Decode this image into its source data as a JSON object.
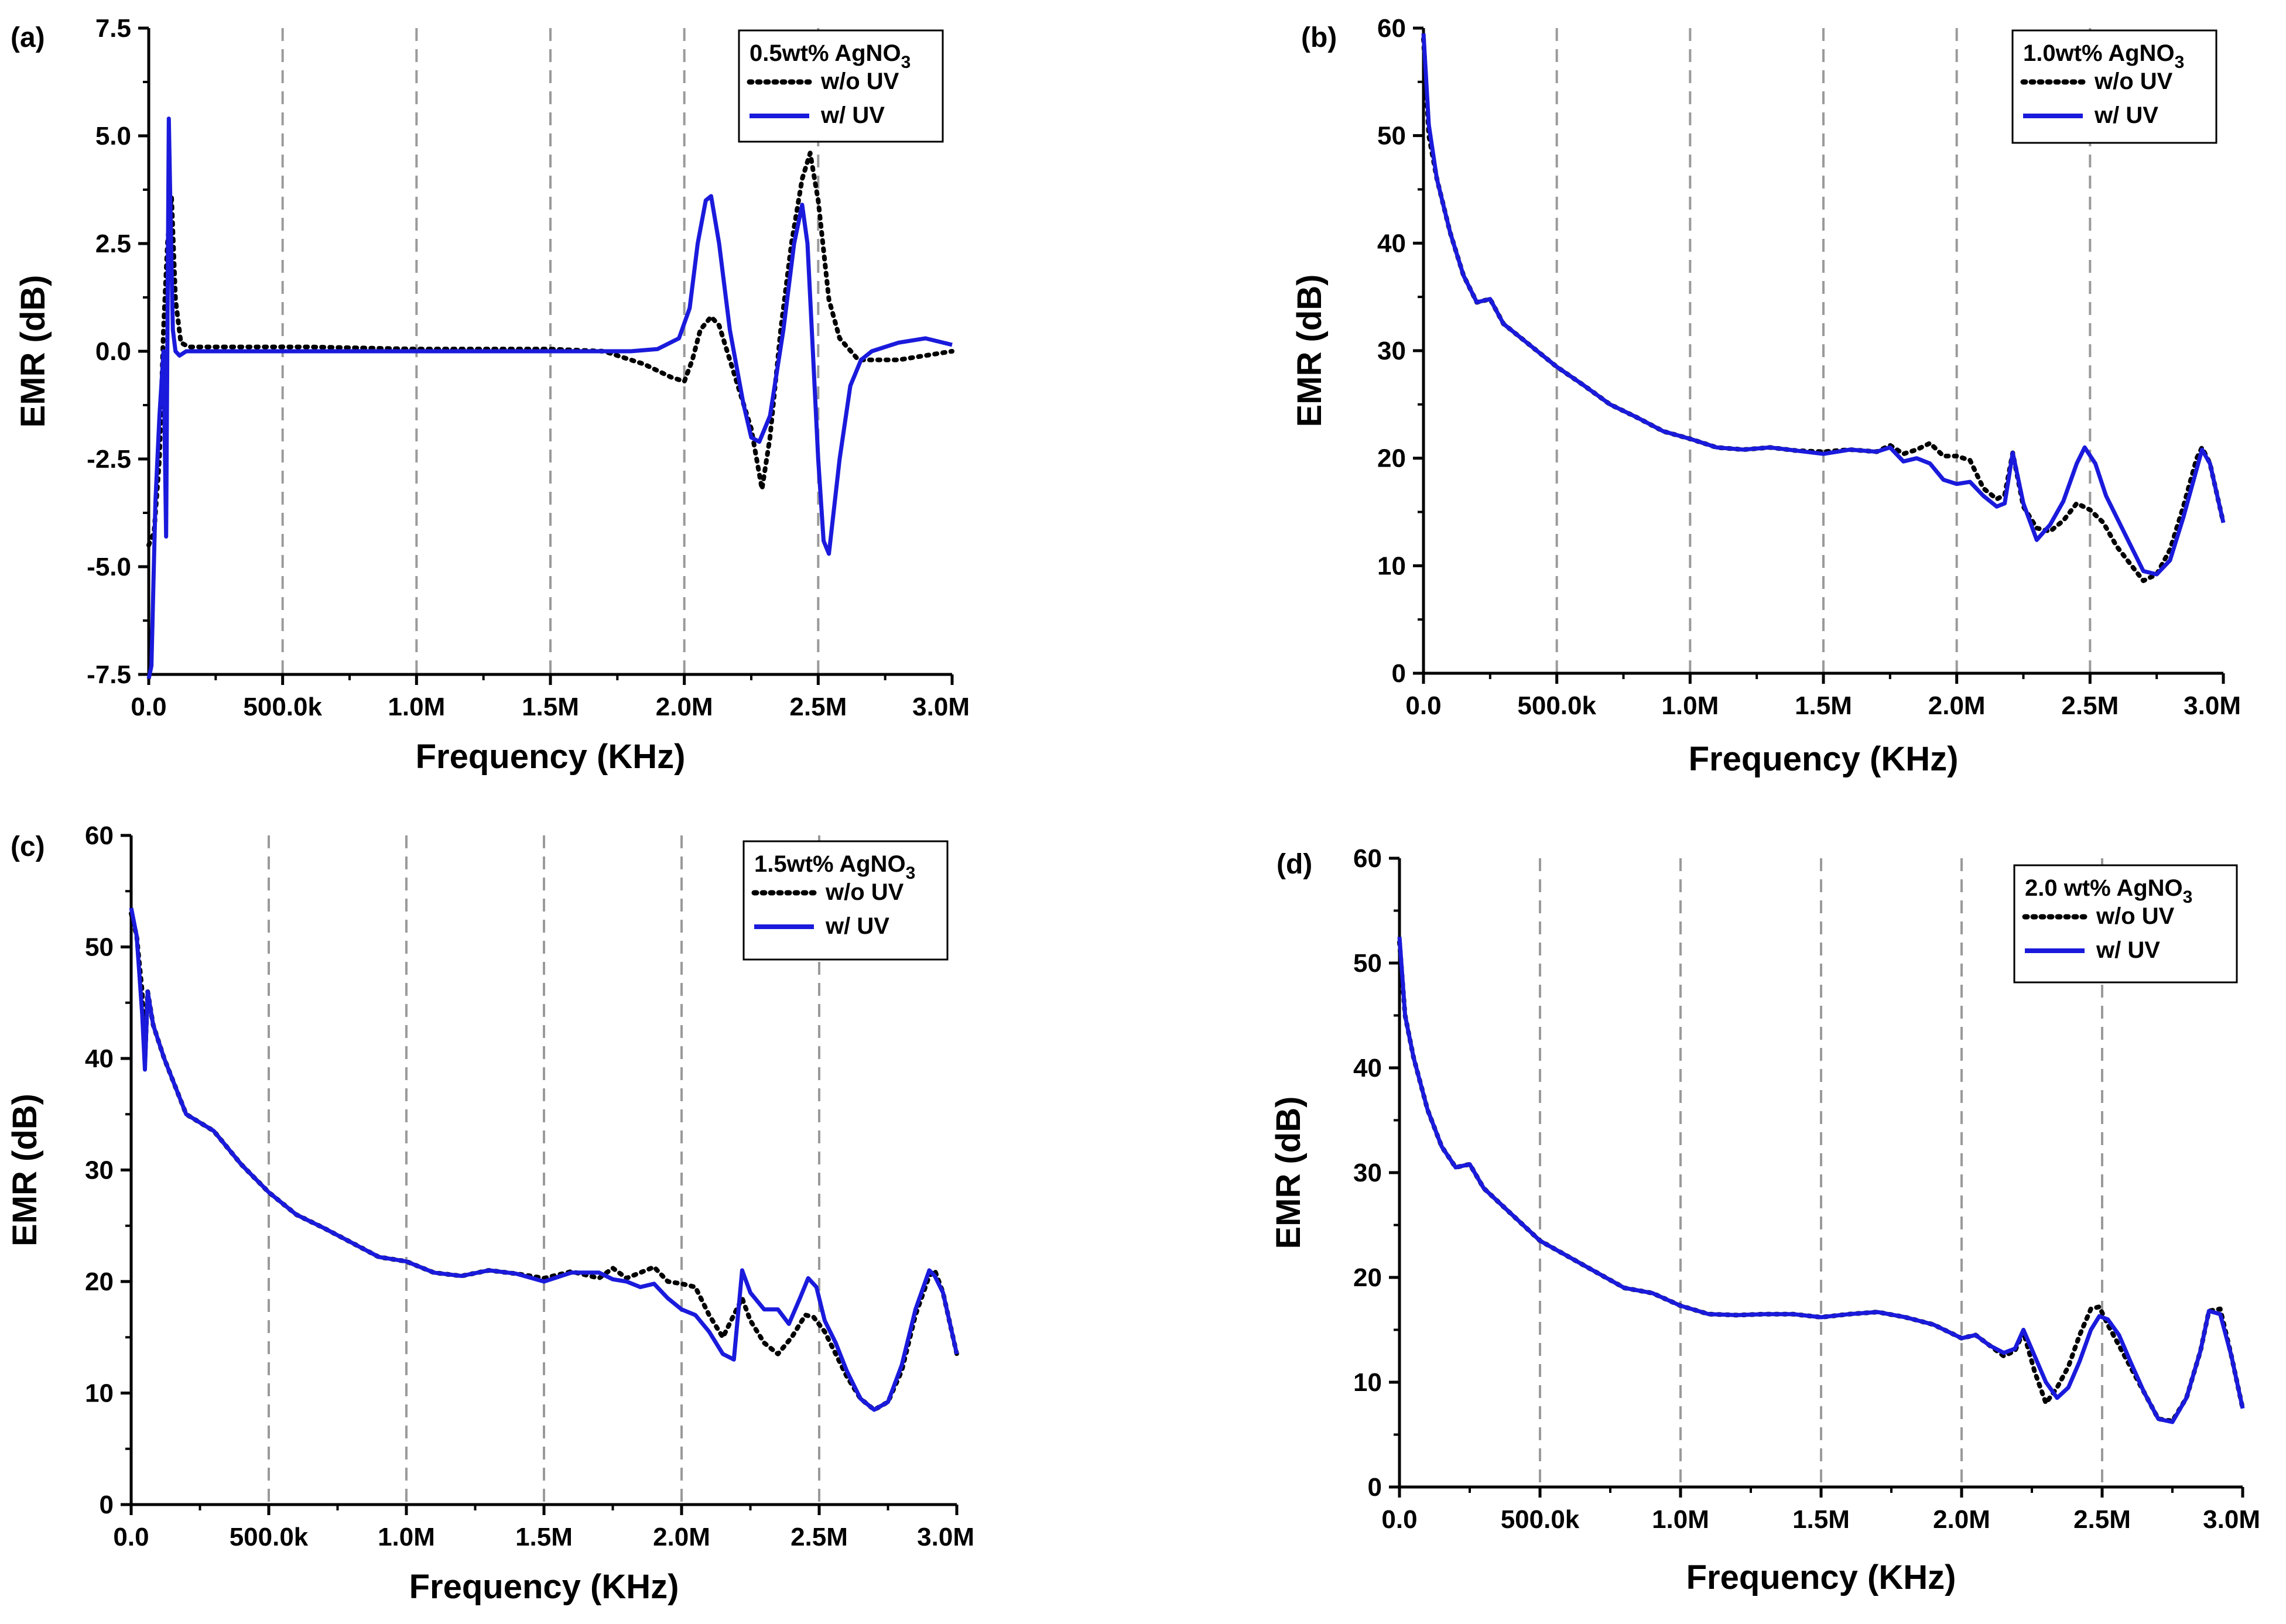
{
  "colors": {
    "uv": "#1a1adc",
    "no_uv": "#000000",
    "grid": "#9a9a9a",
    "axis": "#000000"
  },
  "chart_data": [
    {
      "type": "line",
      "panel_label": "(a)",
      "xlabel": "Frequency (KHz)",
      "ylabel": "EMR (dB)",
      "xlim": [
        0,
        3000000
      ],
      "ylim": [
        -7.5,
        7.5
      ],
      "xticks": [
        0,
        500000,
        1000000,
        1500000,
        2000000,
        2500000,
        3000000
      ],
      "xtick_labels": [
        "0.0",
        "500.0k",
        "1.0M",
        "1.5M",
        "2.0M",
        "2.5M",
        "3.0M"
      ],
      "yticks": [
        -7.5,
        -5.0,
        -2.5,
        0.0,
        2.5,
        5.0,
        7.5
      ],
      "ytick_labels": [
        "-7.5",
        "-5.0",
        "-2.5",
        "0.0",
        "2.5",
        "5.0",
        "7.5"
      ],
      "grid_x": [
        500000,
        1000000,
        1500000,
        2000000,
        2500000
      ],
      "legend": {
        "title_main": "0.5wt% AgNO",
        "title_sub": "3",
        "placement": "top-right"
      },
      "series": [
        {
          "name": "w/o UV",
          "style": "dotted",
          "x": [
            0,
            20000,
            40000,
            55000,
            70000,
            85000,
            100000,
            120000,
            150000,
            300000,
            600000,
            1000000,
            1500000,
            1700000,
            1850000,
            1950000,
            2000000,
            2030000,
            2060000,
            2100000,
            2130000,
            2160000,
            2200000,
            2250000,
            2290000,
            2320000,
            2360000,
            2400000,
            2440000,
            2470000,
            2500000,
            2540000,
            2580000,
            2650000,
            2800000,
            3000000
          ],
          "values": [
            -4.5,
            -4.2,
            -2.5,
            0.5,
            2.5,
            3.6,
            1.2,
            0.2,
            0.1,
            0.1,
            0.1,
            0.05,
            0.05,
            0.0,
            -0.3,
            -0.6,
            -0.7,
            -0.2,
            0.5,
            0.8,
            0.6,
            0.0,
            -0.8,
            -1.8,
            -3.2,
            -2.0,
            0.5,
            2.5,
            4.0,
            4.6,
            3.5,
            1.2,
            0.3,
            -0.2,
            -0.2,
            0.0
          ]
        },
        {
          "name": "w/ UV",
          "style": "solid",
          "x": [
            0,
            10000,
            25000,
            40000,
            55000,
            65000,
            75000,
            82000,
            90000,
            100000,
            115000,
            140000,
            200000,
            500000,
            1000000,
            1500000,
            1800000,
            1900000,
            1980000,
            2020000,
            2050000,
            2080000,
            2100000,
            2130000,
            2170000,
            2220000,
            2250000,
            2280000,
            2320000,
            2370000,
            2410000,
            2440000,
            2460000,
            2480000,
            2500000,
            2520000,
            2540000,
            2580000,
            2620000,
            2660000,
            2700000,
            2800000,
            2900000,
            3000000
          ],
          "values": [
            -7.6,
            -7.3,
            -3.5,
            -1.5,
            0.0,
            -4.3,
            5.4,
            3.0,
            0.5,
            0.0,
            -0.1,
            0.0,
            0.0,
            0.0,
            0.0,
            0.0,
            0.0,
            0.05,
            0.3,
            1.0,
            2.5,
            3.5,
            3.6,
            2.5,
            0.5,
            -1.2,
            -2.0,
            -2.1,
            -1.5,
            0.5,
            2.5,
            3.4,
            2.5,
            0.0,
            -2.5,
            -4.4,
            -4.7,
            -2.5,
            -0.8,
            -0.2,
            0.0,
            0.2,
            0.3,
            0.15
          ]
        }
      ]
    },
    {
      "type": "line",
      "panel_label": "(b)",
      "xlabel": "Frequency (KHz)",
      "ylabel": "EMR (dB)",
      "xlim": [
        0,
        3000000
      ],
      "ylim": [
        0,
        60
      ],
      "xticks": [
        0,
        500000,
        1000000,
        1500000,
        2000000,
        2500000,
        3000000
      ],
      "xtick_labels": [
        "0.0",
        "500.0k",
        "1.0M",
        "1.5M",
        "2.0M",
        "2.5M",
        "3.0M"
      ],
      "yticks": [
        0,
        10,
        20,
        30,
        40,
        50,
        60
      ],
      "ytick_labels": [
        "0",
        "10",
        "20",
        "30",
        "40",
        "50",
        "60"
      ],
      "grid_x": [
        500000,
        1000000,
        1500000,
        2000000,
        2500000
      ],
      "legend": {
        "title_main": "1.0wt% AgNO",
        "title_sub": "3",
        "placement": "top-right"
      },
      "series": [
        {
          "name": "w/o UV",
          "style": "dotted",
          "x": [
            0,
            20000,
            50000,
            100000,
            150000,
            200000,
            250000,
            300000,
            400000,
            500000,
            600000,
            700000,
            800000,
            900000,
            1000000,
            1100000,
            1200000,
            1300000,
            1400000,
            1500000,
            1600000,
            1700000,
            1750000,
            1800000,
            1850000,
            1900000,
            1950000,
            2000000,
            2050000,
            2100000,
            2150000,
            2180000,
            2210000,
            2250000,
            2300000,
            2350000,
            2400000,
            2450000,
            2500000,
            2550000,
            2600000,
            2650000,
            2700000,
            2750000,
            2800000,
            2850000,
            2900000,
            2920000,
            2950000,
            3000000
          ],
          "values": [
            59,
            50,
            46,
            41,
            37,
            34.5,
            34.8,
            32.5,
            30.5,
            28.5,
            26.8,
            25,
            23.8,
            22.5,
            21.8,
            21,
            20.8,
            21,
            20.7,
            20.6,
            20.8,
            20.6,
            21.2,
            20.4,
            20.8,
            21.4,
            20.2,
            20.2,
            19.8,
            17.2,
            16.2,
            16.6,
            20.5,
            15.5,
            13.5,
            13.2,
            14.2,
            15.8,
            15.2,
            14,
            11.8,
            10.2,
            8.6,
            9.2,
            11.5,
            15.5,
            20,
            21,
            19.5,
            14
          ]
        },
        {
          "name": "w/ UV",
          "style": "solid",
          "x": [
            0,
            20000,
            50000,
            100000,
            150000,
            200000,
            250000,
            300000,
            400000,
            500000,
            600000,
            700000,
            800000,
            900000,
            1000000,
            1100000,
            1200000,
            1300000,
            1400000,
            1500000,
            1600000,
            1700000,
            1750000,
            1800000,
            1850000,
            1900000,
            1950000,
            2000000,
            2050000,
            2100000,
            2150000,
            2180000,
            2210000,
            2250000,
            2300000,
            2350000,
            2400000,
            2450000,
            2480000,
            2520000,
            2560000,
            2600000,
            2650000,
            2700000,
            2750000,
            2800000,
            2850000,
            2900000,
            2920000,
            2950000,
            3000000
          ],
          "values": [
            59.5,
            51,
            46,
            41,
            37,
            34.5,
            34.8,
            32.5,
            30.5,
            28.5,
            26.8,
            25,
            23.8,
            22.5,
            21.8,
            21,
            20.8,
            21,
            20.7,
            20.4,
            20.8,
            20.6,
            21,
            19.7,
            20,
            19.5,
            18,
            17.6,
            17.8,
            16.5,
            15.5,
            15.8,
            20.5,
            15.8,
            12.4,
            13.8,
            16,
            19.5,
            21,
            19.5,
            16.5,
            14.5,
            12,
            9.5,
            9.2,
            10.5,
            14.5,
            19,
            20.8,
            19.5,
            14
          ]
        }
      ]
    },
    {
      "type": "line",
      "panel_label": "(c)",
      "xlabel": "Frequency (KHz)",
      "ylabel": "EMR (dB)",
      "xlim": [
        0,
        3000000
      ],
      "ylim": [
        0,
        60
      ],
      "xticks": [
        0,
        500000,
        1000000,
        1500000,
        2000000,
        2500000,
        3000000
      ],
      "xtick_labels": [
        "0.0",
        "500.0k",
        "1.0M",
        "1.5M",
        "2.0M",
        "2.5M",
        "3.0M"
      ],
      "yticks": [
        0,
        10,
        20,
        30,
        40,
        50,
        60
      ],
      "ytick_labels": [
        "0",
        "10",
        "20",
        "30",
        "40",
        "50",
        "60"
      ],
      "grid_x": [
        500000,
        1000000,
        1500000,
        2000000,
        2500000
      ],
      "legend": {
        "title_main": "1.5wt% AgNO",
        "title_sub": "3",
        "placement": "top-right"
      },
      "series": [
        {
          "name": "w/o UV",
          "style": "dotted",
          "x": [
            0,
            20000,
            40000,
            50000,
            60000,
            80000,
            120000,
            200000,
            300000,
            400000,
            500000,
            600000,
            700000,
            800000,
            900000,
            1000000,
            1100000,
            1200000,
            1300000,
            1400000,
            1500000,
            1600000,
            1700000,
            1750000,
            1800000,
            1850000,
            1900000,
            1950000,
            2000000,
            2050000,
            2100000,
            2150000,
            2200000,
            2220000,
            2250000,
            2300000,
            2350000,
            2400000,
            2450000,
            2480000,
            2520000,
            2560000,
            2600000,
            2650000,
            2700000,
            2750000,
            2800000,
            2850000,
            2900000,
            2920000,
            2950000,
            3000000
          ],
          "values": [
            53,
            51,
            46,
            40,
            46,
            43,
            40,
            35,
            33.5,
            30.5,
            28,
            26,
            24.8,
            23.5,
            22.2,
            21.8,
            20.8,
            20.5,
            21,
            20.7,
            20.3,
            20.9,
            20.3,
            21.2,
            20.3,
            20.8,
            21.3,
            20,
            19.8,
            19.5,
            17,
            15,
            17.5,
            18.5,
            16.5,
            14.5,
            13.5,
            15,
            17,
            16.8,
            15.5,
            13.5,
            11.5,
            9.5,
            8.5,
            9.2,
            12,
            17,
            20.5,
            21,
            19,
            13.5
          ]
        },
        {
          "name": "w/ UV",
          "style": "solid",
          "x": [
            0,
            20000,
            40000,
            50000,
            60000,
            80000,
            120000,
            200000,
            300000,
            400000,
            500000,
            600000,
            700000,
            800000,
            900000,
            1000000,
            1100000,
            1200000,
            1300000,
            1400000,
            1500000,
            1600000,
            1700000,
            1750000,
            1800000,
            1850000,
            1900000,
            1950000,
            2000000,
            2050000,
            2100000,
            2150000,
            2190000,
            2220000,
            2250000,
            2300000,
            2350000,
            2390000,
            2430000,
            2460000,
            2490000,
            2520000,
            2560000,
            2600000,
            2650000,
            2700000,
            2750000,
            2800000,
            2850000,
            2900000,
            2920000,
            2950000,
            3000000
          ],
          "values": [
            53.5,
            51,
            44,
            39,
            46,
            43,
            40,
            35,
            33.5,
            30.5,
            28,
            26,
            24.8,
            23.5,
            22.2,
            21.8,
            20.8,
            20.5,
            21,
            20.7,
            20,
            20.8,
            20.8,
            20.2,
            20,
            19.5,
            19.8,
            18.5,
            17.5,
            17,
            15.5,
            13.5,
            13,
            21,
            19,
            17.5,
            17.5,
            16.2,
            18.5,
            20.3,
            19.5,
            16.5,
            14.5,
            12,
            9.5,
            8.5,
            9.2,
            12.5,
            17.5,
            21,
            20.5,
            19,
            13.5
          ]
        }
      ]
    },
    {
      "type": "line",
      "panel_label": "(d)",
      "xlabel": "Frequency (KHz)",
      "ylabel": "EMR (dB)",
      "xlim": [
        0,
        3000000
      ],
      "ylim": [
        0,
        60
      ],
      "xticks": [
        0,
        500000,
        1000000,
        1500000,
        2000000,
        2500000,
        3000000
      ],
      "xtick_labels": [
        "0.0",
        "500.0k",
        "1.0M",
        "1.5M",
        "2.0M",
        "2.5M",
        "3.0M"
      ],
      "yticks": [
        0,
        10,
        20,
        30,
        40,
        50,
        60
      ],
      "ytick_labels": [
        "0",
        "10",
        "20",
        "30",
        "40",
        "50",
        "60"
      ],
      "grid_x": [
        500000,
        1000000,
        1500000,
        2000000,
        2500000
      ],
      "legend": {
        "title_main": "2.0 wt% AgNO",
        "title_sub": "3",
        "placement": "top-right"
      },
      "series": [
        {
          "name": "w/o UV",
          "style": "dotted",
          "x": [
            0,
            20000,
            50000,
            100000,
            150000,
            200000,
            250000,
            300000,
            400000,
            500000,
            600000,
            700000,
            800000,
            900000,
            1000000,
            1100000,
            1200000,
            1300000,
            1400000,
            1500000,
            1600000,
            1700000,
            1800000,
            1900000,
            2000000,
            2050000,
            2100000,
            2150000,
            2190000,
            2220000,
            2260000,
            2300000,
            2340000,
            2380000,
            2420000,
            2460000,
            2490000,
            2520000,
            2560000,
            2600000,
            2650000,
            2700000,
            2750000,
            2800000,
            2850000,
            2880000,
            2920000,
            2960000,
            3000000
          ],
          "values": [
            52,
            45,
            41,
            36,
            32.5,
            30.5,
            30.8,
            28.5,
            26,
            23.5,
            22,
            20.5,
            19,
            18.5,
            17.3,
            16.5,
            16.4,
            16.5,
            16.5,
            16.2,
            16.5,
            16.7,
            16.2,
            15.5,
            14.2,
            14.5,
            13.5,
            12.5,
            13,
            14.8,
            11,
            8,
            9.5,
            11.5,
            14.5,
            17,
            17.2,
            15.5,
            13.5,
            11.5,
            9,
            6.5,
            6.3,
            8.5,
            13,
            16.8,
            17,
            12.5,
            7.5
          ]
        },
        {
          "name": "w/ UV",
          "style": "solid",
          "x": [
            0,
            20000,
            50000,
            100000,
            150000,
            200000,
            250000,
            300000,
            400000,
            500000,
            600000,
            700000,
            800000,
            900000,
            1000000,
            1100000,
            1200000,
            1300000,
            1400000,
            1500000,
            1600000,
            1700000,
            1800000,
            1900000,
            2000000,
            2050000,
            2100000,
            2150000,
            2190000,
            2220000,
            2260000,
            2300000,
            2340000,
            2380000,
            2420000,
            2460000,
            2490000,
            2520000,
            2560000,
            2600000,
            2650000,
            2700000,
            2750000,
            2800000,
            2850000,
            2880000,
            2920000,
            2960000,
            3000000
          ],
          "values": [
            52.5,
            45,
            41,
            36,
            32.5,
            30.5,
            30.8,
            28.5,
            26,
            23.5,
            22,
            20.5,
            19,
            18.5,
            17.3,
            16.5,
            16.4,
            16.5,
            16.5,
            16.2,
            16.5,
            16.7,
            16.2,
            15.5,
            14.2,
            14.5,
            13.5,
            12.8,
            13.2,
            15,
            12.5,
            10,
            8.5,
            9.5,
            12,
            15,
            16.3,
            16,
            14.5,
            12,
            9,
            6.5,
            6.2,
            8.5,
            13,
            16.8,
            16.5,
            12.5,
            7.5
          ]
        }
      ]
    }
  ]
}
